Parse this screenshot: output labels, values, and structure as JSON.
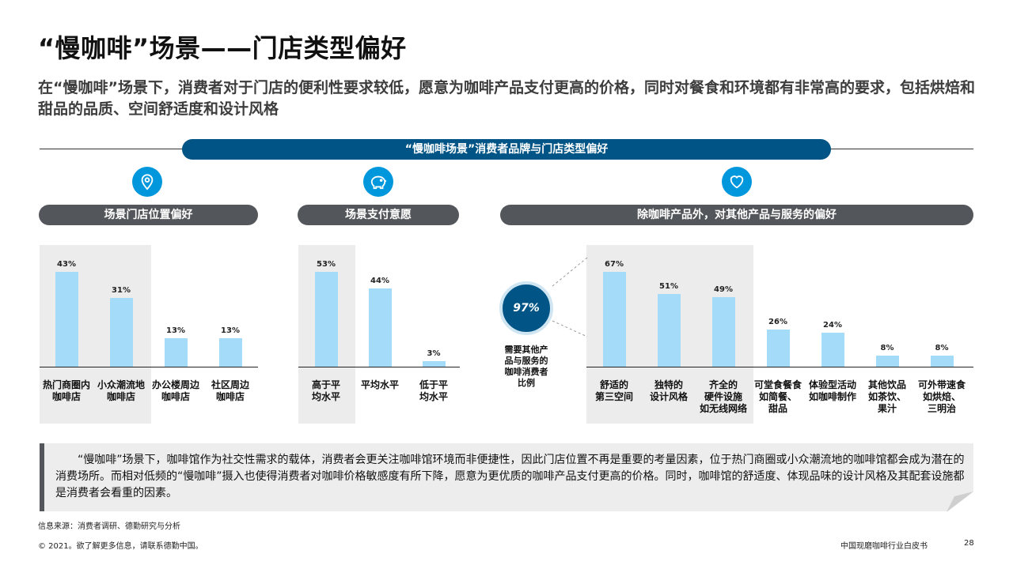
{
  "page": {
    "title": "“慢咖啡”场景——门店类型偏好",
    "subtitle": "在“慢咖啡”场景下，消费者对于门店的便利性要求较低，愿意为咖啡产品支付更高的价格，同时对餐食和环境都有非常高的要求，包括烘焙和甜品的品质、空间舒适度和设计风格"
  },
  "banner": {
    "label": "“慢咖啡场景”消费者品牌与门店类型偏好"
  },
  "sections": {
    "location": {
      "label": "场景门店位置偏好",
      "icon": "map-pin-icon"
    },
    "payment": {
      "label": "场景支付意愿",
      "icon": "piggy-bank-icon"
    },
    "other": {
      "label": "除咖啡产品外，对其他产品与服务的偏好",
      "icon": "heart-icon"
    }
  },
  "callout": {
    "value": "97%",
    "caption": [
      "需要其他产",
      "品与服务的",
      "咖啡消费者",
      "比例"
    ]
  },
  "colors": {
    "bar": "#a3dbf8",
    "highlight_bg": "#ececec",
    "banner": "#005586",
    "pill": "#53565a",
    "icon": "#0097dc"
  },
  "chart_data": [
    {
      "type": "bar",
      "title": "场景门店位置偏好",
      "categories": [
        [
          "热门商圈内",
          "咖啡店"
        ],
        [
          "小众潮流地",
          "咖啡店"
        ],
        [
          "办公楼周边",
          "咖啡店"
        ],
        [
          "社区周边",
          "咖啡店"
        ]
      ],
      "values": [
        43,
        31,
        13,
        13
      ],
      "labels": [
        "43%",
        "31%",
        "13%",
        "13%"
      ],
      "ylim": [
        0,
        50
      ],
      "highlight": [
        0,
        1
      ]
    },
    {
      "type": "bar",
      "title": "场景支付意愿",
      "categories": [
        [
          "高于平",
          "均水平"
        ],
        [
          "平均水平"
        ],
        [
          "低于平",
          "均水平"
        ]
      ],
      "values": [
        53,
        44,
        3
      ],
      "labels": [
        "53%",
        "44%",
        "3%"
      ],
      "ylim": [
        0,
        62
      ],
      "highlight": [
        0
      ]
    },
    {
      "type": "bar",
      "title": "除咖啡产品外，对其他产品与服务的偏好",
      "categories": [
        [
          "舒适的",
          "第三空间"
        ],
        [
          "独特的",
          "设计风格"
        ],
        [
          "齐全的",
          "硬件设施",
          "如无线网络"
        ],
        [
          "可堂食餐食",
          "如简餐、",
          "甜品"
        ],
        [
          "体验型活动",
          "如咖啡制作"
        ],
        [
          "其他饮品",
          "如茶饮、",
          "果汁"
        ],
        [
          "可外带速食",
          "如烘焙、",
          "三明治"
        ]
      ],
      "values": [
        67,
        51,
        49,
        26,
        24,
        8,
        8
      ],
      "labels": [
        "67%",
        "51%",
        "49%",
        "26%",
        "24%",
        "8%",
        "8%"
      ],
      "ylim": [
        0,
        78
      ],
      "highlight": [
        0,
        1,
        2
      ]
    }
  ],
  "note": {
    "text": "“慢咖啡”场景下，咖啡馆作为社交性需求的载体，消费者会更关注咖啡馆环境而非便捷性，因此门店位置不再是重要的考量因素，位于热门商圈或小众潮流地的咖啡馆都会成为潜在的消费场所。而相对低频的“慢咖啡”摄入也使得消费者对咖啡价格敏感度有所下降，愿意为更优质的咖啡产品支付更高的价格。同时，咖啡馆的舒适度、体现品味的设计风格及其配套设施都是消费者会看重的因素。"
  },
  "footer": {
    "source": "信息来源：消费者调研、德勤研究与分析",
    "copyright": "© 2021。欲了解更多信息，请联系德勤中国。",
    "publication": "中国现磨咖啡行业白皮书",
    "page_number": "28"
  }
}
